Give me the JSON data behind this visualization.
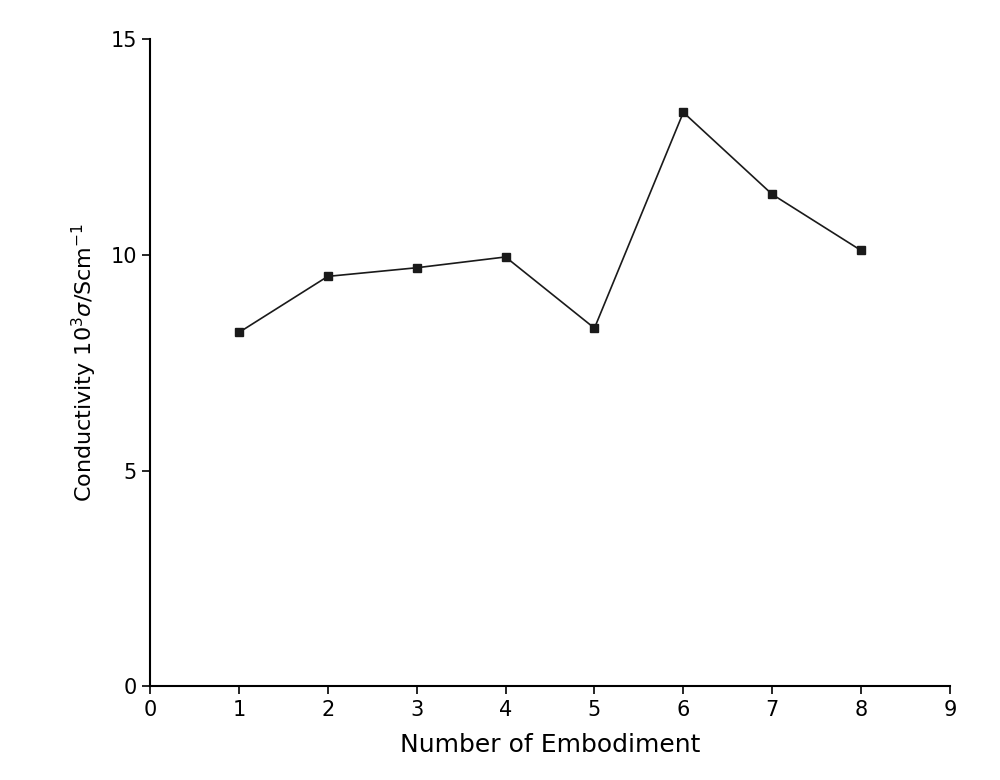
{
  "x": [
    1,
    2,
    3,
    4,
    5,
    6,
    7,
    8
  ],
  "y": [
    8.2,
    9.5,
    9.7,
    9.95,
    8.3,
    13.3,
    11.4,
    10.1
  ],
  "xlabel": "Number of Embodiment",
  "ylabel": "Conductivity 10$^3$$\\sigma$/Scm$^{-1}$",
  "xlim": [
    0,
    9
  ],
  "ylim": [
    0,
    15
  ],
  "xticks": [
    0,
    1,
    2,
    3,
    4,
    5,
    6,
    7,
    8,
    9
  ],
  "yticks": [
    0,
    5,
    10,
    15
  ],
  "line_color": "#1a1a1a",
  "marker": "s",
  "marker_size": 6,
  "marker_color": "#1a1a1a",
  "linewidth": 1.2,
  "xlabel_fontsize": 18,
  "ylabel_fontsize": 16,
  "tick_fontsize": 15,
  "background_color": "#ffffff",
  "axes_color": "#ffffff"
}
